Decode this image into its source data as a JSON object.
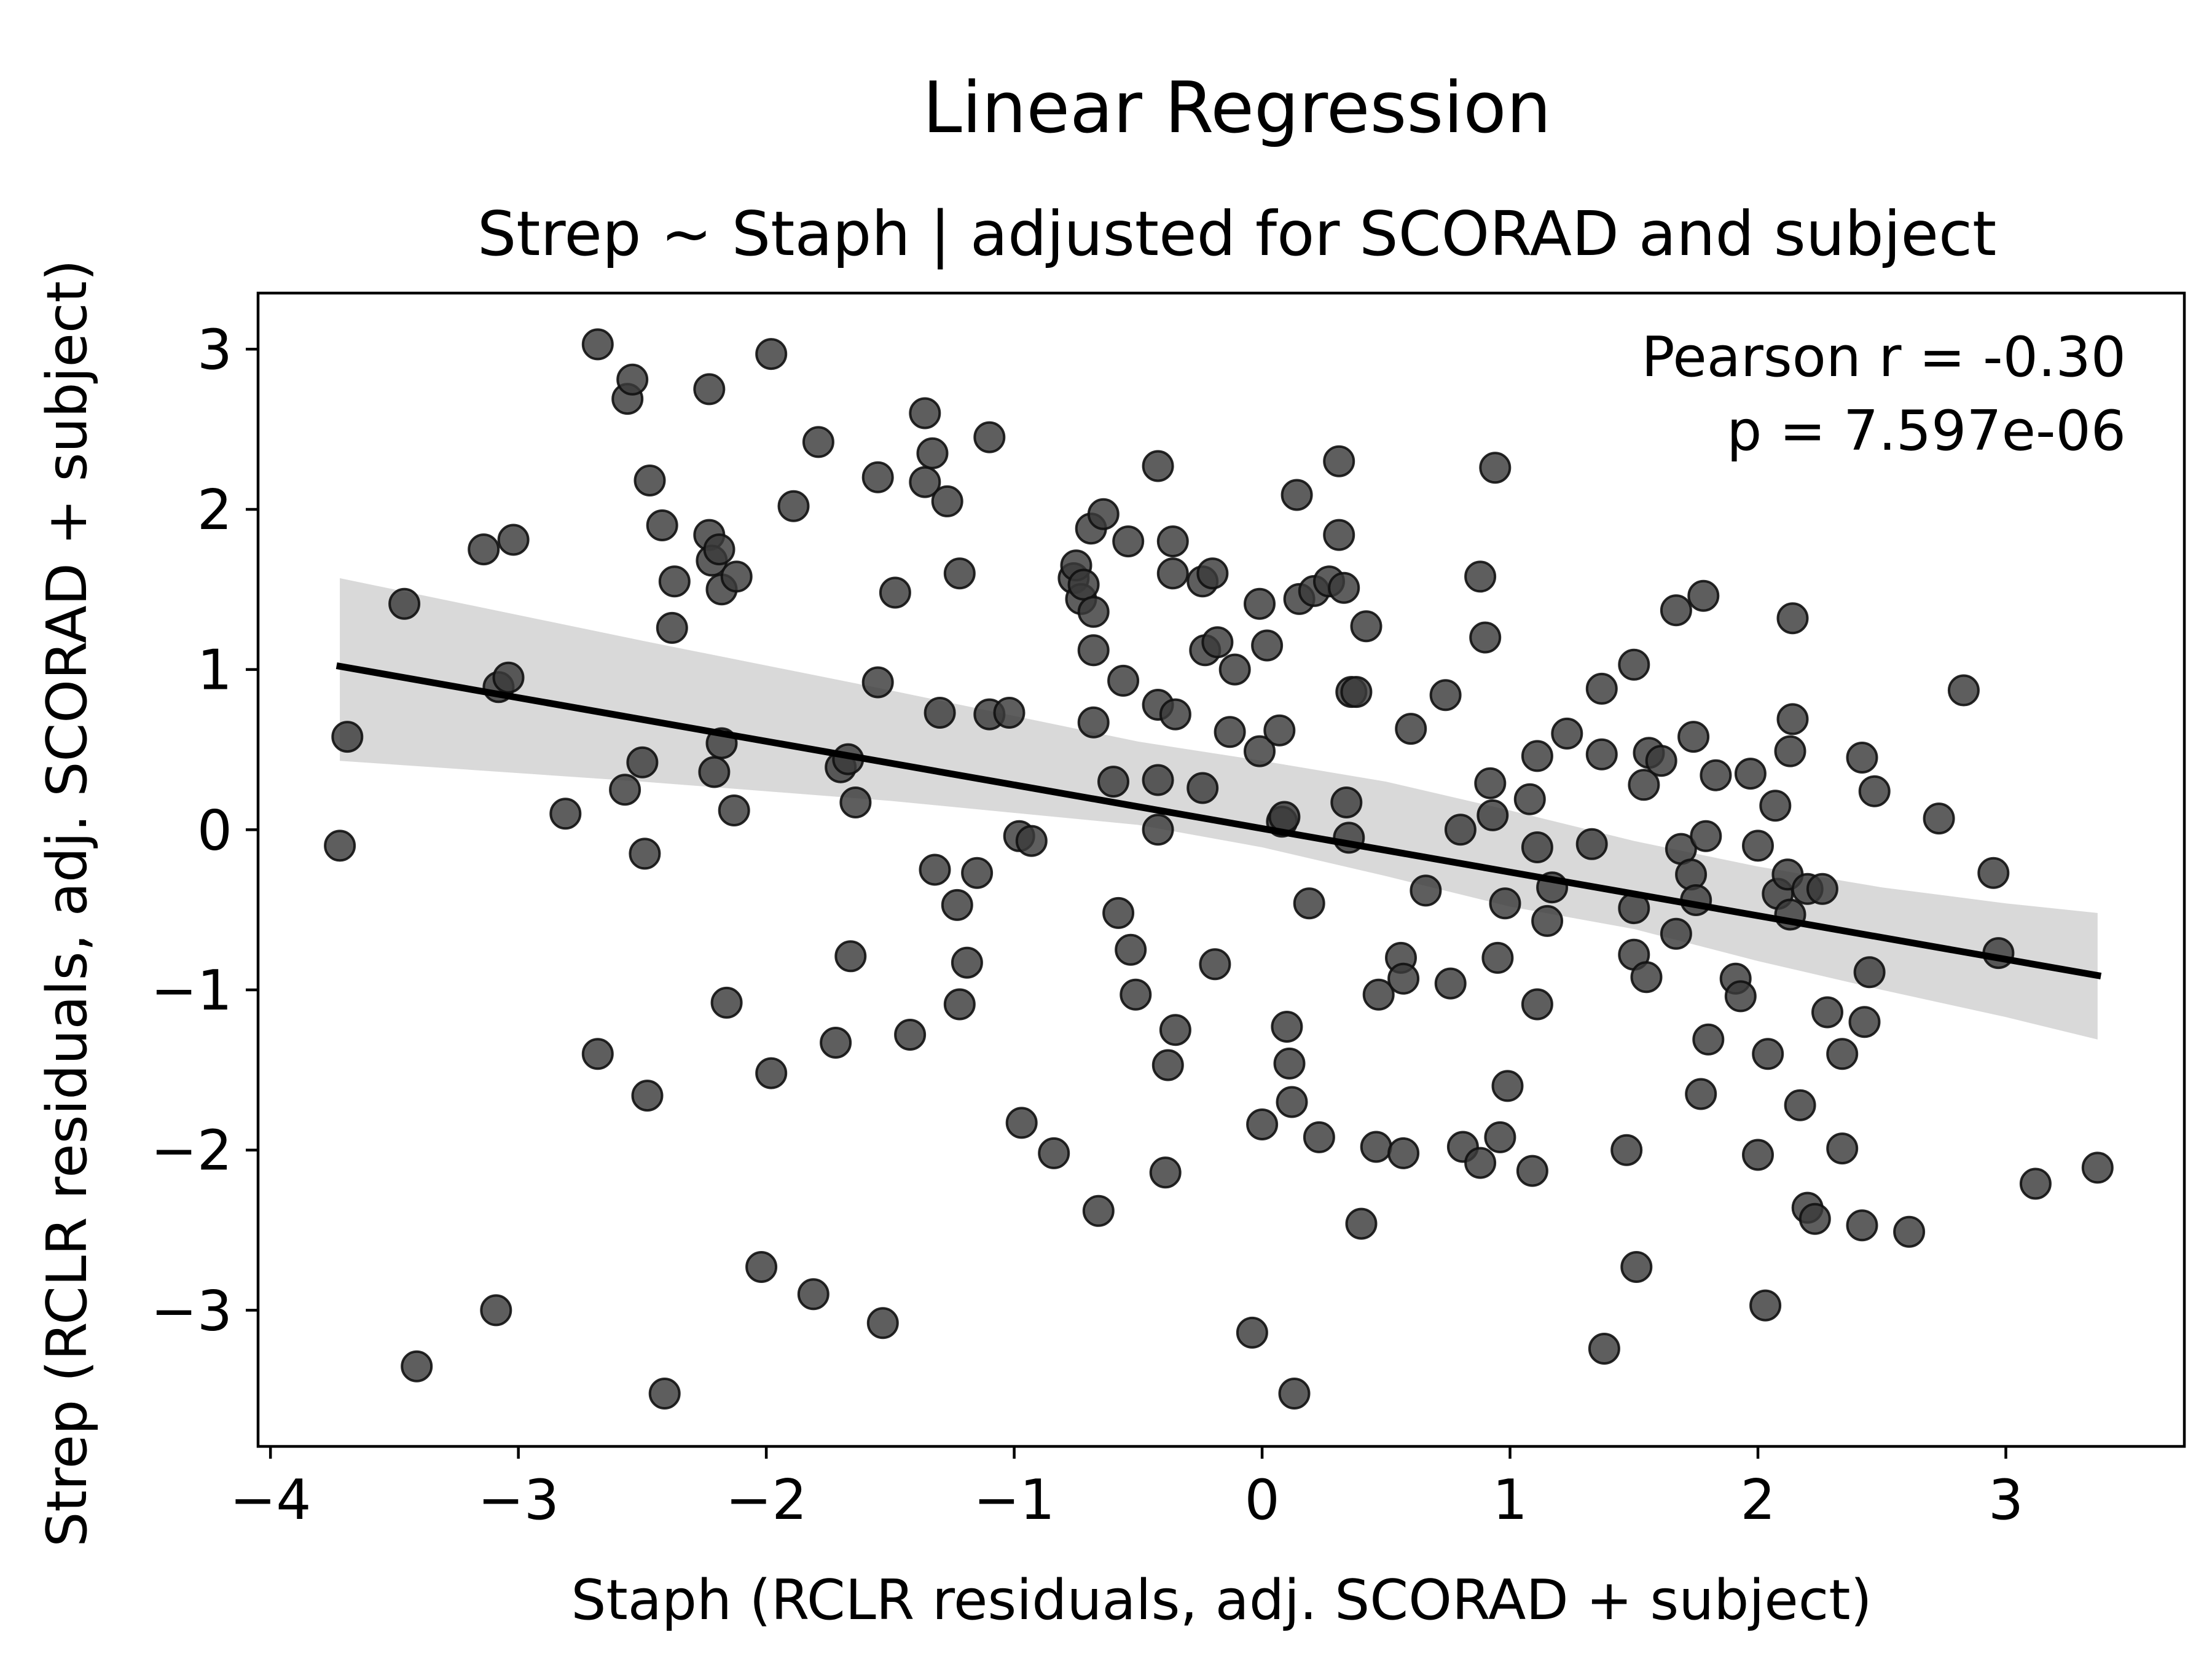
{
  "chart_data": {
    "type": "scatter",
    "title": "Linear Regression",
    "subtitle": "Strep ~ Staph | adjusted for SCORAD and subject",
    "xlabel": "Staph (RCLR residuals, adj. SCORAD + subject)",
    "ylabel": "Strep (RCLR residuals, adj. SCORAD + subject)",
    "xlim": [
      -4.05,
      3.72
    ],
    "ylim": [
      -3.85,
      3.35
    ],
    "xticks": [
      -4,
      -3,
      -2,
      -1,
      0,
      1,
      2,
      3
    ],
    "yticks": [
      -3,
      -2,
      -1,
      0,
      1,
      2,
      3
    ],
    "xtick_labels": [
      "−4",
      "−3",
      "−2",
      "−1",
      "0",
      "1",
      "2",
      "3"
    ],
    "ytick_labels": [
      "−3",
      "−2",
      "−1",
      "0",
      "1",
      "2",
      "3"
    ],
    "annotation": [
      "Pearson r = -0.30",
      "p = 7.597e-06"
    ],
    "grid": false,
    "legend": false,
    "colors": {
      "points": "#3a3a3a",
      "line": "#000000",
      "band": "#d9d9d9"
    },
    "regression": {
      "x": [
        -3.72,
        3.37
      ],
      "y": [
        1.02,
        -0.91
      ]
    },
    "confidence_band": {
      "x": [
        -3.72,
        -2.5,
        -1.5,
        -0.5,
        0.0,
        0.5,
        1.0,
        1.5,
        2.0,
        2.5,
        3.0,
        3.37
      ],
      "upper": [
        1.57,
        1.18,
        0.87,
        0.55,
        0.43,
        0.3,
        0.12,
        -0.07,
        -0.23,
        -0.36,
        -0.46,
        -0.52
      ],
      "lower": [
        0.43,
        0.3,
        0.18,
        0.03,
        -0.11,
        -0.29,
        -0.48,
        -0.62,
        -0.82,
        -1.0,
        -1.17,
        -1.31
      ]
    },
    "points": [
      [
        -3.72,
        -0.1
      ],
      [
        -3.69,
        0.58
      ],
      [
        -3.46,
        1.41
      ],
      [
        -3.41,
        -3.35
      ],
      [
        -3.14,
        1.75
      ],
      [
        -3.09,
        -3.0
      ],
      [
        -3.08,
        0.89
      ],
      [
        -3.04,
        0.95
      ],
      [
        -3.02,
        1.81
      ],
      [
        -2.81,
        0.1
      ],
      [
        -2.68,
        3.03
      ],
      [
        -2.68,
        -1.4
      ],
      [
        -2.57,
        0.25
      ],
      [
        -2.56,
        2.69
      ],
      [
        -2.54,
        2.81
      ],
      [
        -2.5,
        0.42
      ],
      [
        -2.49,
        -0.15
      ],
      [
        -2.48,
        -1.66
      ],
      [
        -2.47,
        2.18
      ],
      [
        -2.42,
        1.9
      ],
      [
        -2.41,
        -3.52
      ],
      [
        -2.38,
        1.26
      ],
      [
        -2.37,
        1.55
      ],
      [
        -2.23,
        2.75
      ],
      [
        -2.23,
        1.84
      ],
      [
        -2.22,
        1.68
      ],
      [
        -2.21,
        0.36
      ],
      [
        -2.19,
        1.75
      ],
      [
        -2.18,
        1.5
      ],
      [
        -2.18,
        0.54
      ],
      [
        -2.16,
        -1.08
      ],
      [
        -2.13,
        0.12
      ],
      [
        -2.12,
        1.58
      ],
      [
        -2.02,
        -2.73
      ],
      [
        -1.98,
        2.97
      ],
      [
        -1.98,
        -1.52
      ],
      [
        -1.89,
        2.02
      ],
      [
        -1.81,
        -2.9
      ],
      [
        -1.79,
        2.42
      ],
      [
        -1.72,
        -1.33
      ],
      [
        -1.7,
        0.39
      ],
      [
        -1.67,
        0.44
      ],
      [
        -1.66,
        -0.79
      ],
      [
        -1.64,
        0.17
      ],
      [
        -1.55,
        2.2
      ],
      [
        -1.55,
        0.92
      ],
      [
        -1.53,
        -3.08
      ],
      [
        -1.48,
        1.48
      ],
      [
        -1.42,
        -1.28
      ],
      [
        -1.36,
        2.6
      ],
      [
        -1.36,
        2.17
      ],
      [
        -1.33,
        2.35
      ],
      [
        -1.32,
        -0.25
      ],
      [
        -1.3,
        0.73
      ],
      [
        -1.27,
        2.05
      ],
      [
        -1.22,
        1.6
      ],
      [
        -1.23,
        -0.47
      ],
      [
        -1.22,
        -1.09
      ],
      [
        -1.19,
        -0.83
      ],
      [
        -1.15,
        -0.27
      ],
      [
        -1.1,
        2.45
      ],
      [
        -1.1,
        0.72
      ],
      [
        -1.02,
        0.73
      ],
      [
        -0.98,
        -0.04
      ],
      [
        -0.97,
        -1.83
      ],
      [
        -0.93,
        -0.07
      ],
      [
        -0.84,
        -2.02
      ],
      [
        -0.76,
        1.57
      ],
      [
        -0.75,
        1.65
      ],
      [
        -0.73,
        1.44
      ],
      [
        -0.72,
        1.53
      ],
      [
        -0.69,
        1.88
      ],
      [
        -0.68,
        1.36
      ],
      [
        -0.68,
        1.12
      ],
      [
        -0.68,
        0.67
      ],
      [
        -0.66,
        -2.38
      ],
      [
        -0.64,
        1.97
      ],
      [
        -0.6,
        0.3
      ],
      [
        -0.58,
        -0.52
      ],
      [
        -0.56,
        0.93
      ],
      [
        -0.54,
        1.8
      ],
      [
        -0.53,
        -0.75
      ],
      [
        -0.51,
        -1.03
      ],
      [
        -0.42,
        2.27
      ],
      [
        -0.42,
        0.78
      ],
      [
        -0.42,
        0.31
      ],
      [
        -0.42,
        0.0
      ],
      [
        -0.39,
        -2.14
      ],
      [
        -0.38,
        -1.47
      ],
      [
        -0.36,
        1.8
      ],
      [
        -0.36,
        1.6
      ],
      [
        -0.35,
        0.72
      ],
      [
        -0.35,
        -1.25
      ],
      [
        -0.24,
        1.55
      ],
      [
        -0.24,
        0.26
      ],
      [
        -0.23,
        1.12
      ],
      [
        -0.2,
        1.6
      ],
      [
        -0.18,
        1.17
      ],
      [
        -0.19,
        -0.84
      ],
      [
        -0.13,
        0.61
      ],
      [
        -0.11,
        1.0
      ],
      [
        -0.04,
        -3.14
      ],
      [
        -0.01,
        0.49
      ],
      [
        -0.01,
        1.41
      ],
      [
        0.0,
        -1.84
      ],
      [
        0.02,
        1.15
      ],
      [
        0.07,
        0.62
      ],
      [
        0.08,
        0.05
      ],
      [
        0.09,
        0.08
      ],
      [
        0.1,
        -1.23
      ],
      [
        0.11,
        -1.46
      ],
      [
        0.12,
        -1.7
      ],
      [
        0.13,
        -3.52
      ],
      [
        0.14,
        2.09
      ],
      [
        0.15,
        1.44
      ],
      [
        0.19,
        -0.46
      ],
      [
        0.21,
        1.49
      ],
      [
        0.23,
        -1.92
      ],
      [
        0.27,
        1.55
      ],
      [
        0.31,
        2.3
      ],
      [
        0.31,
        1.84
      ],
      [
        0.33,
        1.51
      ],
      [
        0.34,
        0.17
      ],
      [
        0.35,
        -0.05
      ],
      [
        0.36,
        0.86
      ],
      [
        0.38,
        0.86
      ],
      [
        0.4,
        -2.46
      ],
      [
        0.42,
        1.27
      ],
      [
        0.46,
        -1.98
      ],
      [
        0.47,
        -1.03
      ],
      [
        0.56,
        -0.8
      ],
      [
        0.57,
        -0.93
      ],
      [
        0.57,
        -2.02
      ],
      [
        0.6,
        0.63
      ],
      [
        0.66,
        -0.38
      ],
      [
        0.74,
        0.84
      ],
      [
        0.76,
        -0.96
      ],
      [
        0.8,
        0.0
      ],
      [
        0.81,
        -1.98
      ],
      [
        0.88,
        -2.08
      ],
      [
        0.88,
        1.58
      ],
      [
        0.9,
        1.2
      ],
      [
        0.92,
        0.29
      ],
      [
        0.93,
        0.09
      ],
      [
        0.94,
        2.26
      ],
      [
        0.95,
        -0.8
      ],
      [
        0.96,
        -1.92
      ],
      [
        0.98,
        -0.46
      ],
      [
        0.99,
        -1.6
      ],
      [
        1.08,
        0.19
      ],
      [
        1.09,
        -2.13
      ],
      [
        1.11,
        0.46
      ],
      [
        1.11,
        -1.09
      ],
      [
        1.11,
        -0.11
      ],
      [
        1.15,
        -0.57
      ],
      [
        1.17,
        -0.36
      ],
      [
        1.23,
        0.6
      ],
      [
        1.33,
        -0.09
      ],
      [
        1.37,
        0.88
      ],
      [
        1.37,
        0.47
      ],
      [
        1.38,
        -3.24
      ],
      [
        1.47,
        -2.0
      ],
      [
        1.5,
        1.03
      ],
      [
        1.5,
        -0.78
      ],
      [
        1.5,
        -0.49
      ],
      [
        1.51,
        -2.73
      ],
      [
        1.54,
        0.28
      ],
      [
        1.55,
        -0.92
      ],
      [
        1.56,
        0.48
      ],
      [
        1.61,
        0.43
      ],
      [
        1.67,
        1.37
      ],
      [
        1.67,
        -0.65
      ],
      [
        1.69,
        -0.12
      ],
      [
        1.73,
        -0.28
      ],
      [
        1.74,
        0.58
      ],
      [
        1.75,
        -0.44
      ],
      [
        1.77,
        -1.65
      ],
      [
        1.78,
        1.46
      ],
      [
        1.79,
        -0.04
      ],
      [
        1.8,
        -1.31
      ],
      [
        1.83,
        0.34
      ],
      [
        1.91,
        -0.93
      ],
      [
        1.93,
        -1.04
      ],
      [
        1.97,
        0.35
      ],
      [
        2.0,
        -0.1
      ],
      [
        2.0,
        -2.03
      ],
      [
        2.03,
        -2.97
      ],
      [
        2.04,
        -1.4
      ],
      [
        2.07,
        0.15
      ],
      [
        2.08,
        -0.4
      ],
      [
        2.12,
        -0.28
      ],
      [
        2.13,
        0.49
      ],
      [
        2.13,
        -0.53
      ],
      [
        2.14,
        0.69
      ],
      [
        2.14,
        1.32
      ],
      [
        2.17,
        -1.72
      ],
      [
        2.2,
        -0.37
      ],
      [
        2.2,
        -2.36
      ],
      [
        2.23,
        -2.43
      ],
      [
        2.26,
        -0.37
      ],
      [
        2.28,
        -1.14
      ],
      [
        2.34,
        -1.4
      ],
      [
        2.34,
        -1.99
      ],
      [
        2.42,
        0.45
      ],
      [
        2.42,
        -2.47
      ],
      [
        2.43,
        -1.2
      ],
      [
        2.45,
        -0.89
      ],
      [
        2.47,
        0.24
      ],
      [
        2.61,
        -2.51
      ],
      [
        2.73,
        0.07
      ],
      [
        2.83,
        0.87
      ],
      [
        2.95,
        -0.27
      ],
      [
        2.97,
        -0.77
      ],
      [
        3.12,
        -2.21
      ],
      [
        3.37,
        -2.11
      ]
    ]
  }
}
